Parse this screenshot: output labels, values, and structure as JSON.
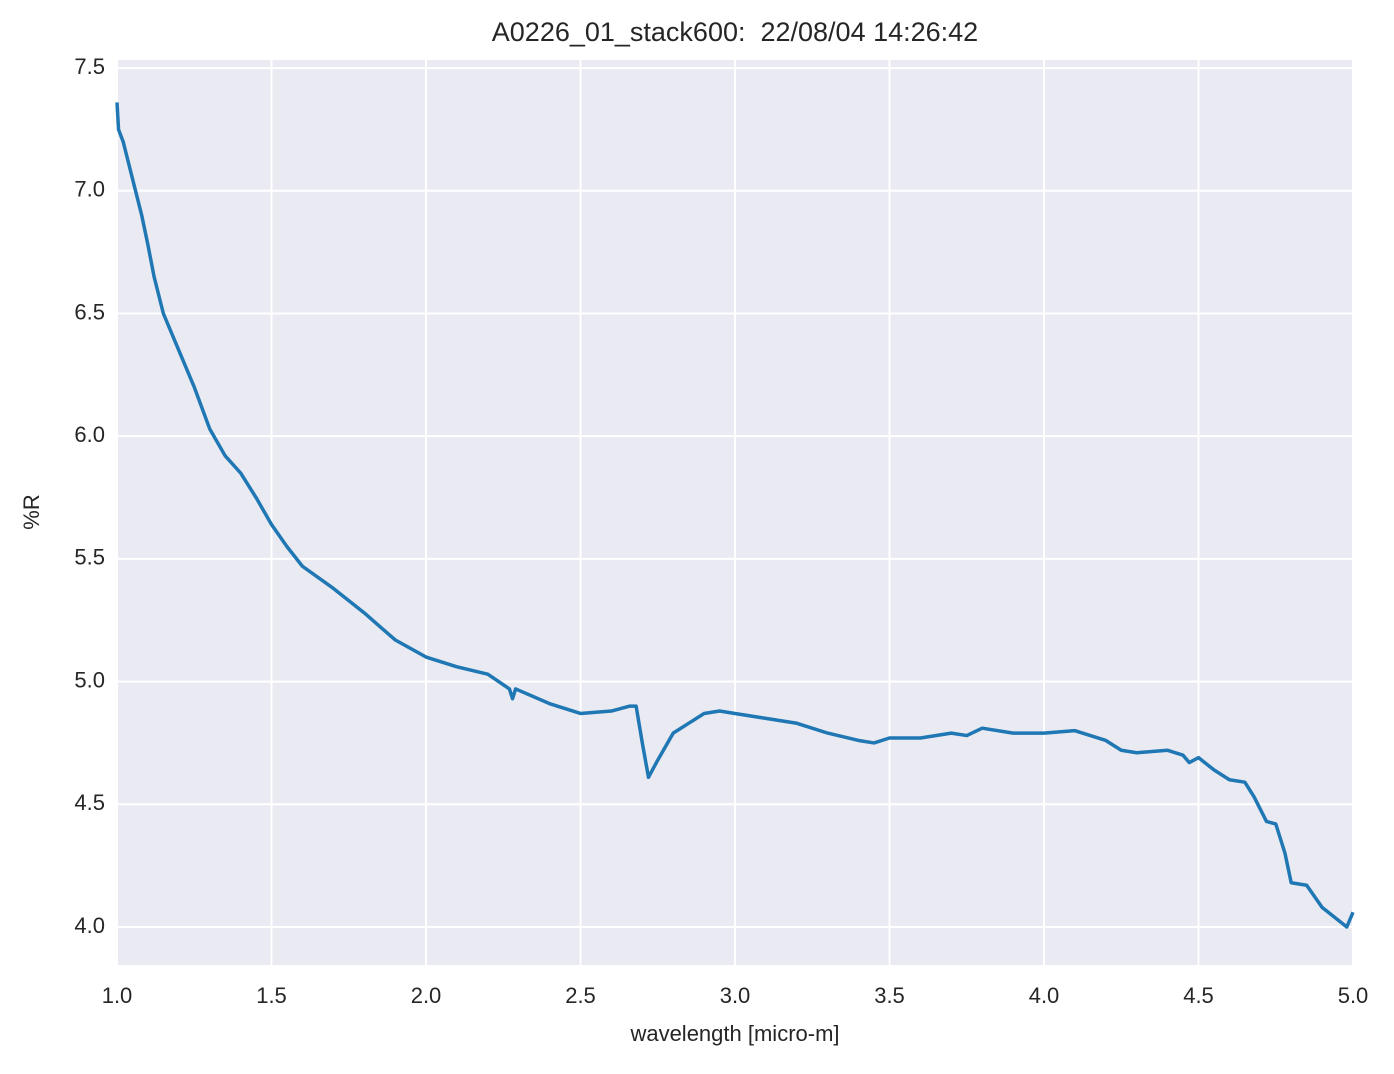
{
  "chart_data": {
    "type": "line",
    "title": "A0226_01_stack600:  22/08/04 14:26:42",
    "x_label": "wavelength [micro-m]",
    "y_label": "%R",
    "x": [
      1.0,
      1.005,
      1.02,
      1.05,
      1.08,
      1.1,
      1.12,
      1.15,
      1.2,
      1.25,
      1.3,
      1.35,
      1.4,
      1.45,
      1.5,
      1.55,
      1.6,
      1.7,
      1.8,
      1.9,
      2.0,
      2.1,
      2.2,
      2.27,
      2.28,
      2.29,
      2.4,
      2.5,
      2.6,
      2.66,
      2.68,
      2.7,
      2.72,
      2.75,
      2.8,
      2.85,
      2.9,
      2.95,
      3.0,
      3.1,
      3.2,
      3.3,
      3.4,
      3.45,
      3.5,
      3.6,
      3.7,
      3.75,
      3.8,
      3.9,
      4.0,
      4.1,
      4.2,
      4.25,
      4.3,
      4.4,
      4.45,
      4.47,
      4.5,
      4.55,
      4.6,
      4.65,
      4.68,
      4.72,
      4.75,
      4.78,
      4.8,
      4.85,
      4.9,
      4.95,
      4.98,
      5.0
    ],
    "series": [
      {
        "name": "%R",
        "color": "#1f77b4",
        "values": [
          7.36,
          7.25,
          7.2,
          7.05,
          6.9,
          6.78,
          6.65,
          6.5,
          6.35,
          6.2,
          6.03,
          5.92,
          5.85,
          5.75,
          5.64,
          5.55,
          5.47,
          5.38,
          5.28,
          5.17,
          5.1,
          5.06,
          5.03,
          4.97,
          4.93,
          4.97,
          4.91,
          4.87,
          4.88,
          4.9,
          4.9,
          4.75,
          4.61,
          4.68,
          4.79,
          4.83,
          4.87,
          4.88,
          4.87,
          4.85,
          4.83,
          4.79,
          4.76,
          4.75,
          4.77,
          4.77,
          4.79,
          4.78,
          4.81,
          4.79,
          4.79,
          4.8,
          4.76,
          4.72,
          4.71,
          4.72,
          4.7,
          4.67,
          4.69,
          4.64,
          4.6,
          4.59,
          4.53,
          4.43,
          4.42,
          4.3,
          4.18,
          4.17,
          4.08,
          4.03,
          4.0,
          4.06
        ]
      }
    ],
    "xlim": [
      1.0,
      5.0
    ],
    "ylim": [
      3.845,
      7.533
    ],
    "xticks": [
      {
        "value": 1.0,
        "label": "1.0"
      },
      1.5,
      {
        "value": 2.0,
        "label": "2.0"
      },
      2.5,
      {
        "value": 3.0,
        "label": "3.0"
      },
      3.5,
      {
        "value": 4.0,
        "label": "4.0"
      },
      4.5,
      {
        "value": 5.0,
        "label": "5.0"
      }
    ],
    "yticks": [
      {
        "value": 4.0,
        "label": "4.0"
      },
      4.5,
      {
        "value": 5.0,
        "label": "5.0"
      },
      5.5,
      {
        "value": 6.0,
        "label": "6.0"
      },
      6.5,
      {
        "value": 7.0,
        "label": "7.0"
      },
      7.5
    ],
    "grid": true
  }
}
